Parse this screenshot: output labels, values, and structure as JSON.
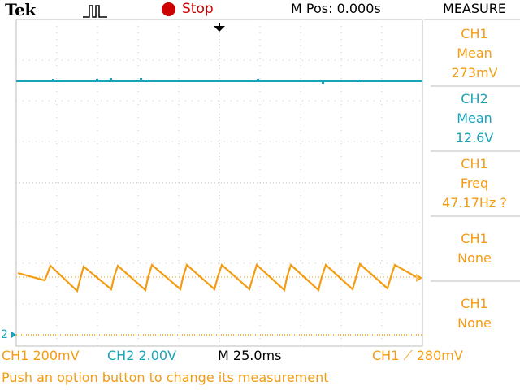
{
  "header": {
    "brand": "Tek",
    "trigger_icon": "trigger-pulse-icon",
    "run_state": "Stop",
    "run_state_color": "#cc0000",
    "m_pos": "M Pos: 0.000s",
    "menu_title": "MEASURE"
  },
  "measurements": [
    {
      "channel": "CH1",
      "type": "Mean",
      "value": "273mV",
      "color": "#f39c12"
    },
    {
      "channel": "CH2",
      "type": "Mean",
      "value": "12.6V",
      "color": "#19a3b8"
    },
    {
      "channel": "CH1",
      "type": "Freq",
      "value": "47.17Hz ?",
      "color": "#f39c12"
    },
    {
      "channel": "CH1",
      "type": "None",
      "value": "",
      "color": "#f39c12"
    },
    {
      "channel": "CH1",
      "type": "None",
      "value": "",
      "color": "#f39c12"
    }
  ],
  "status_bar": {
    "ch1_scale": "CH1  200mV",
    "ch2_scale": "CH2  2.00V",
    "timebase": "M 25.0ms",
    "trigger": "CH1 ⟋ 280mV"
  },
  "markers": {
    "ch2_ground": "2"
  },
  "message": "Push an option button to change its measurement",
  "colors": {
    "ch1": "#f39c12",
    "ch2": "#19a3b8",
    "grid": "#bdbdbd",
    "background": "#ffffff"
  }
}
